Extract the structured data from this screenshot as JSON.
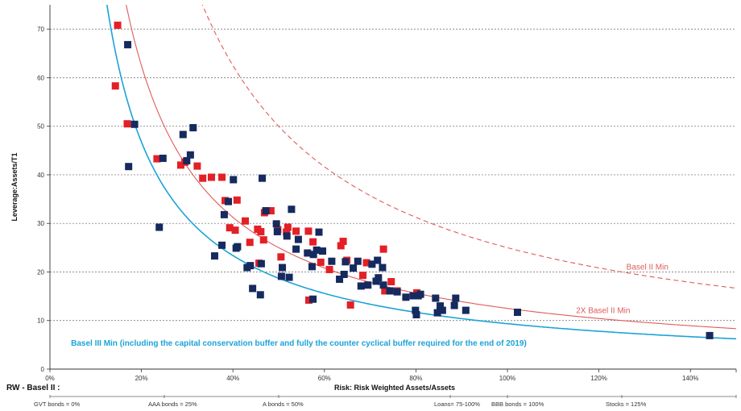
{
  "chart_data": {
    "type": "scatter",
    "title": "",
    "xlabel": "Risk: Risk Weighted Assets/Assets",
    "ylabel": "Leverage:Assets/T1",
    "xlim": [
      0,
      150
    ],
    "ylim": [
      0,
      75
    ],
    "x_ticks": [
      0,
      20,
      40,
      60,
      80,
      100,
      120,
      140
    ],
    "x_tick_labels": [
      "0%",
      "20%",
      "40%",
      "60%",
      "80%",
      "100%",
      "120%",
      "140%"
    ],
    "y_ticks": [
      0,
      10,
      20,
      30,
      40,
      50,
      60,
      70
    ],
    "y_tick_labels": [
      "0",
      "10",
      "20",
      "30",
      "40",
      "50",
      "60",
      "70"
    ],
    "grid": "horizontal dashed",
    "series": [
      {
        "color": "#e32026",
        "marker": "square",
        "points": [
          [
            14.8,
            70.8
          ],
          [
            14.3,
            58.3
          ],
          [
            16.9,
            50.5
          ],
          [
            23.4,
            43.3
          ],
          [
            28.6,
            42.0
          ],
          [
            29.5,
            42.6
          ],
          [
            32.2,
            41.8
          ],
          [
            33.4,
            39.3
          ],
          [
            35.3,
            39.5
          ],
          [
            37.6,
            39.5
          ],
          [
            38.3,
            34.7
          ],
          [
            39.3,
            29.1
          ],
          [
            40.9,
            34.8
          ],
          [
            40.5,
            28.6
          ],
          [
            42.7,
            30.5
          ],
          [
            43.7,
            26.1
          ],
          [
            45.4,
            28.8
          ],
          [
            46.1,
            28.3
          ],
          [
            46.9,
            32.2
          ],
          [
            46.7,
            26.6
          ],
          [
            45.7,
            21.8
          ],
          [
            49.8,
            28.7
          ],
          [
            50.5,
            23.1
          ],
          [
            51.7,
            28.2
          ],
          [
            52.0,
            29.2
          ],
          [
            53.8,
            28.4
          ],
          [
            56.5,
            28.4
          ],
          [
            57.5,
            26.2
          ],
          [
            59.2,
            22.0
          ],
          [
            61.1,
            20.5
          ],
          [
            63.6,
            25.4
          ],
          [
            64.1,
            26.3
          ],
          [
            64.9,
            22.4
          ],
          [
            65.7,
            13.2
          ],
          [
            69.2,
            21.9
          ],
          [
            68.4,
            19.3
          ],
          [
            72.9,
            24.7
          ],
          [
            73.2,
            16.1
          ],
          [
            75.9,
            16.1
          ],
          [
            74.6,
            18.0
          ],
          [
            80.2,
            15.7
          ],
          [
            56.6,
            14.2
          ],
          [
            48.3,
            32.6
          ]
        ]
      },
      {
        "color": "#152a5e",
        "marker": "square",
        "points": [
          [
            17.0,
            66.8
          ],
          [
            18.5,
            50.4
          ],
          [
            17.2,
            41.7
          ],
          [
            24.7,
            43.4
          ],
          [
            29.1,
            48.3
          ],
          [
            29.9,
            42.9
          ],
          [
            30.7,
            44.1
          ],
          [
            31.3,
            49.7
          ],
          [
            23.9,
            29.2
          ],
          [
            36.0,
            23.3
          ],
          [
            37.6,
            25.5
          ],
          [
            38.1,
            31.8
          ],
          [
            39.0,
            34.5
          ],
          [
            40.1,
            39.0
          ],
          [
            40.7,
            24.9
          ],
          [
            41.0,
            25.2
          ],
          [
            43.8,
            21.3
          ],
          [
            44.3,
            16.6
          ],
          [
            46.0,
            15.3
          ],
          [
            46.4,
            39.3
          ],
          [
            47.2,
            32.6
          ],
          [
            49.5,
            29.9
          ],
          [
            49.7,
            28.3
          ],
          [
            50.8,
            20.9
          ],
          [
            50.6,
            19.1
          ],
          [
            51.8,
            27.4
          ],
          [
            52.3,
            18.9
          ],
          [
            52.8,
            32.9
          ],
          [
            53.8,
            24.7
          ],
          [
            54.3,
            26.7
          ],
          [
            56.3,
            23.9
          ],
          [
            57.6,
            23.6
          ],
          [
            57.3,
            21.1
          ],
          [
            58.3,
            24.5
          ],
          [
            58.8,
            28.2
          ],
          [
            59.6,
            24.3
          ],
          [
            61.6,
            22.2
          ],
          [
            63.3,
            18.5
          ],
          [
            64.3,
            19.5
          ],
          [
            64.6,
            22.1
          ],
          [
            66.3,
            20.8
          ],
          [
            67.3,
            22.2
          ],
          [
            68.0,
            17.1
          ],
          [
            69.5,
            17.3
          ],
          [
            70.4,
            21.6
          ],
          [
            71.3,
            18.1
          ],
          [
            71.6,
            22.4
          ],
          [
            71.8,
            18.8
          ],
          [
            72.7,
            20.9
          ],
          [
            72.9,
            17.3
          ],
          [
            74.3,
            16.1
          ],
          [
            75.9,
            15.9
          ],
          [
            77.8,
            14.8
          ],
          [
            79.4,
            15.1
          ],
          [
            80.5,
            15.1
          ],
          [
            79.9,
            12.1
          ],
          [
            80.1,
            11.2
          ],
          [
            81.0,
            15.4
          ],
          [
            84.3,
            14.6
          ],
          [
            84.7,
            11.6
          ],
          [
            85.3,
            13.0
          ],
          [
            85.8,
            12.1
          ],
          [
            88.4,
            13.1
          ],
          [
            88.7,
            14.6
          ],
          [
            90.9,
            12.1
          ],
          [
            102.2,
            11.7
          ],
          [
            144.2,
            6.9
          ],
          [
            57.5,
            14.4
          ],
          [
            43.1,
            20.9
          ],
          [
            46.2,
            21.7
          ]
        ]
      }
    ],
    "curves": [
      {
        "label": "Basel II Min",
        "color": "#e05a5a",
        "k": 25.0,
        "dash": "6,4",
        "label_x": 126,
        "label_y": 20.5
      },
      {
        "label": "2X Basel II Min",
        "color": "#e05a5a",
        "k": 12.5,
        "dash": "",
        "label_x": 115,
        "label_y": 11.5
      },
      {
        "label": "Basel III Min (including the capital conservation buffer and  fully the counter cyclical buffer required for the end of 2019)",
        "color": "#1ba3d8",
        "k": 9.35,
        "dash": "",
        "label_x": 4.6,
        "label_y": 4.8
      }
    ],
    "rw_basel_label": "RW - Basel II :",
    "rw_buckets": [
      {
        "label": "GVT bonds = 0%",
        "x": 0
      },
      {
        "label": "AAA bonds = 25%",
        "x": 25
      },
      {
        "label": "A bonds = 50%",
        "x": 50
      },
      {
        "label": "Loans= 75-100%",
        "x": 87.5
      },
      {
        "label": "BBB bonds = 100%",
        "x": 100
      },
      {
        "label": "Stocks = 125%",
        "x": 125
      }
    ],
    "colors": {
      "red": "#e32026",
      "navy": "#152a5e",
      "basel_red": "#e05a5a",
      "basel3_blue": "#1ba3d8"
    }
  }
}
